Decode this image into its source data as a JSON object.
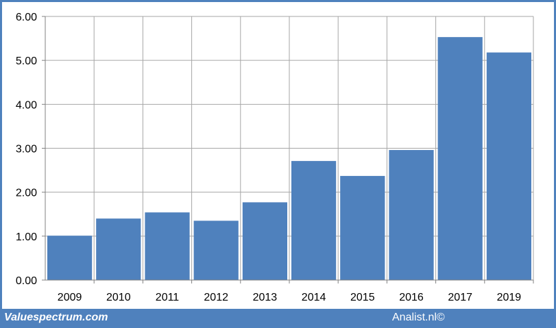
{
  "chart_data": {
    "type": "bar",
    "categories": [
      "2009",
      "2010",
      "2011",
      "2012",
      "2013",
      "2014",
      "2015",
      "2016",
      "2017",
      "2019"
    ],
    "values": [
      1.01,
      1.4,
      1.54,
      1.35,
      1.77,
      2.71,
      2.37,
      2.96,
      5.53,
      5.18
    ],
    "y_ticks": [
      "0.00",
      "1.00",
      "2.00",
      "3.00",
      "4.00",
      "5.00",
      "6.00"
    ],
    "ylim": [
      0,
      6
    ],
    "grid": true,
    "legend": "none",
    "bar_color": "#4f81bd",
    "title": "",
    "xlabel": "",
    "ylabel": ""
  },
  "footer": {
    "left_text": "Valuespectrum.com",
    "right_text": "Analist.nl©"
  },
  "colors": {
    "frame": "#4f81bd",
    "grid": "#a6a6a6",
    "axis": "#808080"
  }
}
